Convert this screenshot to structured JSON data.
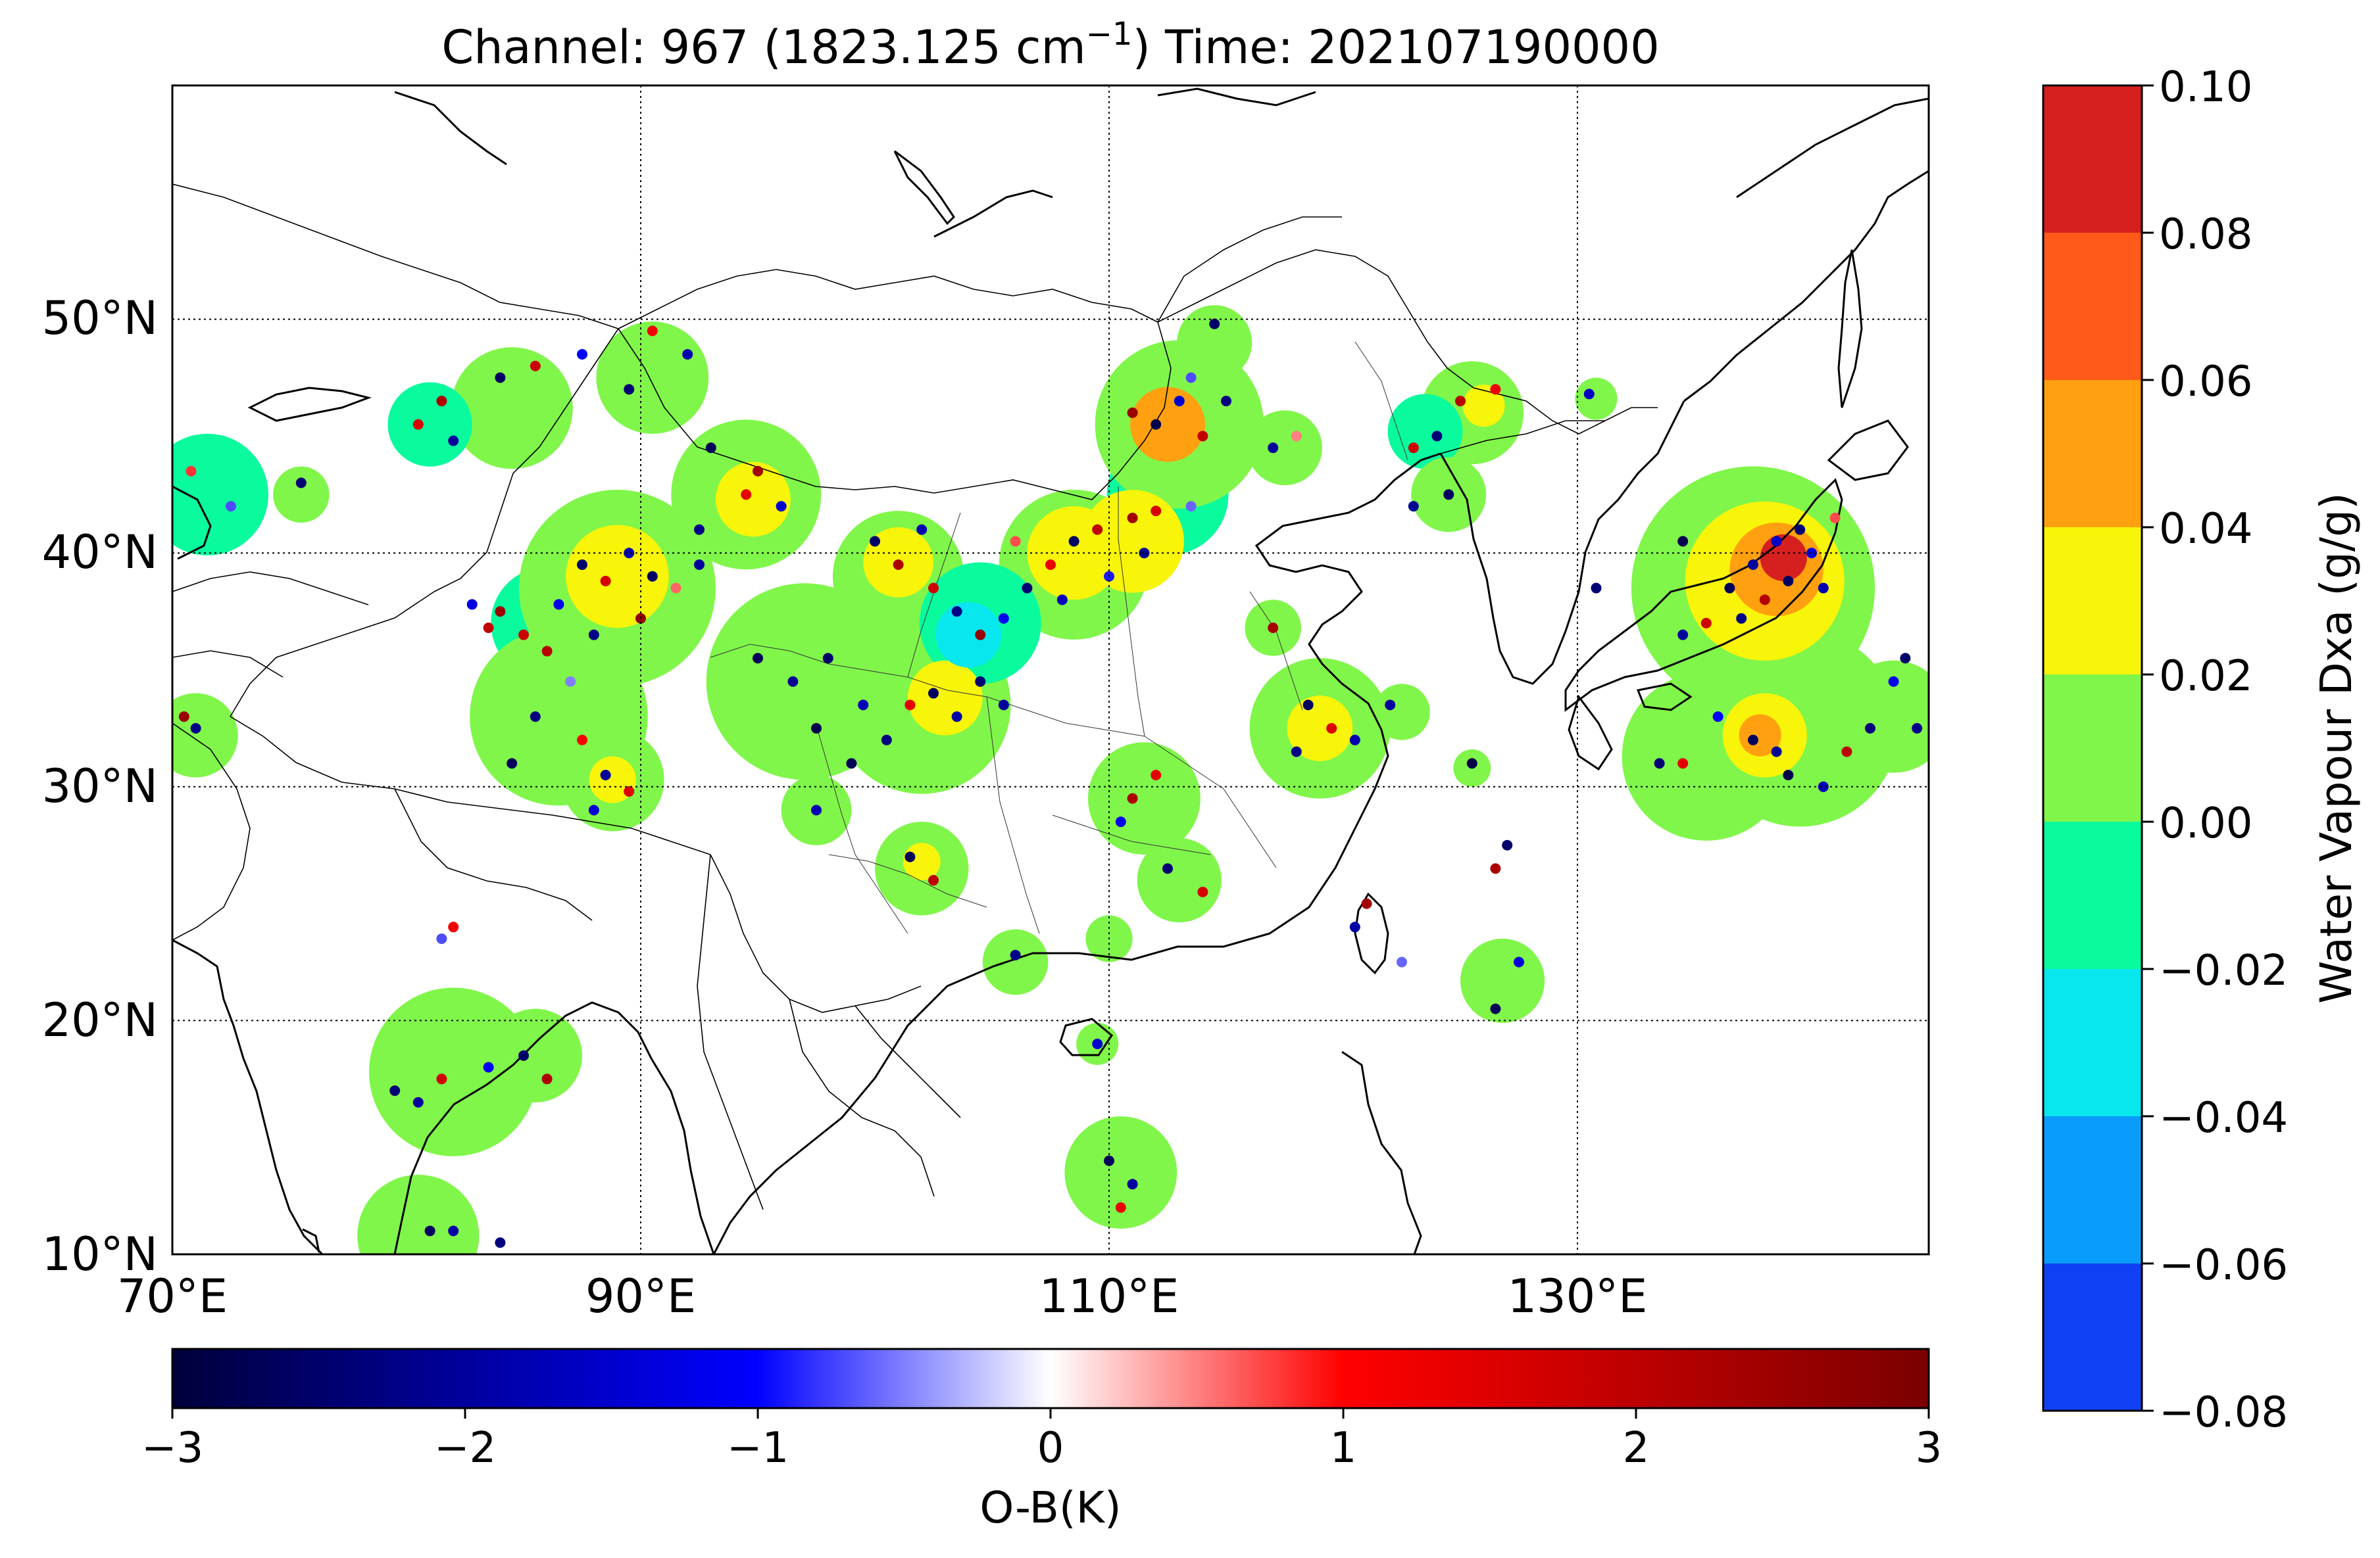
{
  "title": {
    "prefix": "Channel: 967  (1823.125 cm",
    "superscript": "−1",
    "suffix": ")  Time: 202107190000"
  },
  "map": {
    "lon_ticks": [
      "70°E",
      "90°E",
      "110°E",
      "130°E"
    ],
    "lat_ticks": [
      "10°N",
      "20°N",
      "30°N",
      "40°N",
      "50°N"
    ],
    "lon_values": [
      70,
      90,
      110,
      130
    ],
    "lat_values": [
      10,
      20,
      30,
      40,
      50
    ],
    "extent": {
      "lon_min": 70,
      "lon_max": 145,
      "lat_min": 10,
      "lat_max": 60
    },
    "gridlines": "dotted",
    "land_color": "#ffffff",
    "coast_color": "#000000"
  },
  "colorbar_vertical": {
    "label": "Water Vapour Dxa (g/g)",
    "ticks": [
      "0.10",
      "0.08",
      "0.06",
      "0.04",
      "0.02",
      "0.00",
      "−0.02",
      "−0.04",
      "−0.06",
      "−0.08"
    ],
    "colors": [
      "#d62020",
      "#ff5a1a",
      "#ffa010",
      "#f8f40a",
      "#80f64a",
      "#0afa9e",
      "#08e6ee",
      "#0a9cfa",
      "#1040f4"
    ]
  },
  "colorbar_horizontal": {
    "label": "O-B(K)",
    "ticks": [
      "−3",
      "−2",
      "−1",
      "0",
      "1",
      "2",
      "3"
    ],
    "tick_values": [
      -3,
      -2,
      -1,
      0,
      1,
      2,
      3
    ],
    "colors": [
      "#00003a",
      "#0000ff",
      "#ffffff",
      "#ff0000",
      "#7a0000"
    ]
  },
  "dxa_field": [
    {
      "lon": 84.5,
      "lat": 46.2,
      "r": 2.6,
      "v": 0.005
    },
    {
      "lon": 81.0,
      "lat": 45.5,
      "r": 1.8,
      "v": -0.005
    },
    {
      "lon": 90.5,
      "lat": 47.5,
      "r": 2.4,
      "v": 0.005
    },
    {
      "lon": 71.5,
      "lat": 42.5,
      "r": 2.6,
      "v": -0.005
    },
    {
      "lon": 75.5,
      "lat": 42.5,
      "r": 1.2,
      "v": 0.005
    },
    {
      "lon": 94.5,
      "lat": 42.5,
      "r": 3.2,
      "v": 0.012
    },
    {
      "lon": 94.8,
      "lat": 42.3,
      "r": 1.6,
      "v": 0.03
    },
    {
      "lon": 89.0,
      "lat": 38.5,
      "r": 4.2,
      "v": 0.012
    },
    {
      "lon": 89.0,
      "lat": 39.0,
      "r": 2.2,
      "v": 0.03
    },
    {
      "lon": 86.0,
      "lat": 37.0,
      "r": 2.4,
      "v": -0.005
    },
    {
      "lon": 86.5,
      "lat": 33.0,
      "r": 3.8,
      "v": 0.005
    },
    {
      "lon": 88.8,
      "lat": 30.3,
      "r": 2.2,
      "v": 0.012
    },
    {
      "lon": 88.8,
      "lat": 30.3,
      "r": 1.0,
      "v": 0.03
    },
    {
      "lon": 97.0,
      "lat": 34.5,
      "r": 4.2,
      "v": 0.005
    },
    {
      "lon": 102.0,
      "lat": 33.5,
      "r": 3.8,
      "v": 0.005
    },
    {
      "lon": 103.0,
      "lat": 33.8,
      "r": 1.6,
      "v": 0.03
    },
    {
      "lon": 101.0,
      "lat": 39.0,
      "r": 2.8,
      "v": 0.008
    },
    {
      "lon": 101.0,
      "lat": 39.6,
      "r": 1.5,
      "v": 0.03
    },
    {
      "lon": 104.5,
      "lat": 37.0,
      "r": 2.6,
      "v": -0.015
    },
    {
      "lon": 104.0,
      "lat": 36.5,
      "r": 1.4,
      "v": -0.03
    },
    {
      "lon": 108.5,
      "lat": 39.5,
      "r": 3.2,
      "v": 0.008
    },
    {
      "lon": 108.5,
      "lat": 40.0,
      "r": 2.0,
      "v": 0.03
    },
    {
      "lon": 111.0,
      "lat": 40.5,
      "r": 2.2,
      "v": 0.025
    },
    {
      "lon": 112.5,
      "lat": 42.5,
      "r": 2.6,
      "v": -0.01
    },
    {
      "lon": 113.0,
      "lat": 45.5,
      "r": 3.6,
      "v": 0.012
    },
    {
      "lon": 112.5,
      "lat": 45.5,
      "r": 1.6,
      "v": 0.055
    },
    {
      "lon": 114.5,
      "lat": 49.0,
      "r": 1.6,
      "v": 0.005
    },
    {
      "lon": 117.5,
      "lat": 44.5,
      "r": 1.6,
      "v": 0.005
    },
    {
      "lon": 125.5,
      "lat": 46.0,
      "r": 2.2,
      "v": 0.005
    },
    {
      "lon": 123.5,
      "lat": 45.2,
      "r": 1.6,
      "v": -0.005
    },
    {
      "lon": 126.0,
      "lat": 46.3,
      "r": 0.9,
      "v": 0.03
    },
    {
      "lon": 124.5,
      "lat": 42.5,
      "r": 1.6,
      "v": 0.005
    },
    {
      "lon": 130.8,
      "lat": 46.6,
      "r": 0.9,
      "v": 0.005
    },
    {
      "lon": 117.0,
      "lat": 36.8,
      "r": 1.2,
      "v": 0.005
    },
    {
      "lon": 119.0,
      "lat": 32.5,
      "r": 3.0,
      "v": 0.008
    },
    {
      "lon": 119.0,
      "lat": 32.5,
      "r": 1.4,
      "v": 0.03
    },
    {
      "lon": 122.5,
      "lat": 33.2,
      "r": 1.2,
      "v": 0.005
    },
    {
      "lon": 111.5,
      "lat": 29.5,
      "r": 2.4,
      "v": 0.005
    },
    {
      "lon": 113.0,
      "lat": 26.0,
      "r": 1.8,
      "v": 0.005
    },
    {
      "lon": 110.0,
      "lat": 23.5,
      "r": 1.0,
      "v": 0.005
    },
    {
      "lon": 102.0,
      "lat": 26.5,
      "r": 2.0,
      "v": 0.005
    },
    {
      "lon": 102.0,
      "lat": 26.8,
      "r": 0.8,
      "v": 0.03
    },
    {
      "lon": 106.0,
      "lat": 22.5,
      "r": 1.4,
      "v": 0.005
    },
    {
      "lon": 109.5,
      "lat": 19.0,
      "r": 0.9,
      "v": 0.005
    },
    {
      "lon": 110.5,
      "lat": 13.5,
      "r": 2.4,
      "v": 0.005
    },
    {
      "lon": 125.5,
      "lat": 30.8,
      "r": 0.8,
      "v": 0.005
    },
    {
      "lon": 126.8,
      "lat": 21.7,
      "r": 1.8,
      "v": 0.005
    },
    {
      "lon": 97.5,
      "lat": 29.0,
      "r": 1.5,
      "v": 0.005
    },
    {
      "lon": 71.0,
      "lat": 32.2,
      "r": 1.8,
      "v": 0.005
    },
    {
      "lon": 82.0,
      "lat": 17.8,
      "r": 3.6,
      "v": 0.005
    },
    {
      "lon": 85.5,
      "lat": 18.5,
      "r": 2.0,
      "v": 0.005
    },
    {
      "lon": 80.5,
      "lat": 10.8,
      "r": 2.6,
      "v": 0.005
    },
    {
      "lon": 137.5,
      "lat": 38.5,
      "r": 5.2,
      "v": 0.012
    },
    {
      "lon": 138.0,
      "lat": 38.8,
      "r": 3.4,
      "v": 0.03
    },
    {
      "lon": 138.5,
      "lat": 39.3,
      "r": 2.0,
      "v": 0.06
    },
    {
      "lon": 138.8,
      "lat": 39.8,
      "r": 1.0,
      "v": 0.085
    },
    {
      "lon": 135.5,
      "lat": 31.3,
      "r": 3.6,
      "v": 0.008
    },
    {
      "lon": 139.5,
      "lat": 32.5,
      "r": 4.2,
      "v": 0.008
    },
    {
      "lon": 138.0,
      "lat": 32.2,
      "r": 1.8,
      "v": 0.03
    },
    {
      "lon": 137.8,
      "lat": 32.2,
      "r": 0.9,
      "v": 0.055
    },
    {
      "lon": 143.5,
      "lat": 33.0,
      "r": 2.4,
      "v": 0.005
    }
  ],
  "obs_points": [
    {
      "lon": 84.0,
      "lat": 47.5,
      "ob": -2.6
    },
    {
      "lon": 85.5,
      "lat": 48.0,
      "ob": 1.8
    },
    {
      "lon": 87.5,
      "lat": 48.5,
      "ob": -1.0
    },
    {
      "lon": 81.5,
      "lat": 46.5,
      "ob": 2.2
    },
    {
      "lon": 80.5,
      "lat": 45.5,
      "ob": 1.6
    },
    {
      "lon": 82.0,
      "lat": 44.8,
      "ob": -2.0
    },
    {
      "lon": 89.5,
      "lat": 47.0,
      "ob": -2.4
    },
    {
      "lon": 90.5,
      "lat": 49.5,
      "ob": 1.2
    },
    {
      "lon": 92.0,
      "lat": 48.5,
      "ob": -1.8
    },
    {
      "lon": 72.5,
      "lat": 42.0,
      "ob": -0.7
    },
    {
      "lon": 75.5,
      "lat": 43.0,
      "ob": -2.4
    },
    {
      "lon": 70.8,
      "lat": 43.5,
      "ob": 0.8
    },
    {
      "lon": 93.0,
      "lat": 44.5,
      "ob": -2.7
    },
    {
      "lon": 94.5,
      "lat": 42.5,
      "ob": 1.4
    },
    {
      "lon": 96.0,
      "lat": 42.0,
      "ob": -1.5
    },
    {
      "lon": 92.5,
      "lat": 41.0,
      "ob": -2.2
    },
    {
      "lon": 95.0,
      "lat": 43.5,
      "ob": 2.4
    },
    {
      "lon": 84.0,
      "lat": 37.5,
      "ob": 2.5
    },
    {
      "lon": 85.0,
      "lat": 36.5,
      "ob": 1.8
    },
    {
      "lon": 86.5,
      "lat": 37.8,
      "ob": -1.2
    },
    {
      "lon": 87.5,
      "lat": 39.5,
      "ob": -2.5
    },
    {
      "lon": 88.5,
      "lat": 38.8,
      "ob": 1.6
    },
    {
      "lon": 89.5,
      "lat": 40.0,
      "ob": -1.8
    },
    {
      "lon": 90.5,
      "lat": 39.0,
      "ob": -2.6
    },
    {
      "lon": 91.5,
      "lat": 38.5,
      "ob": 0.6
    },
    {
      "lon": 92.5,
      "lat": 39.5,
      "ob": -2.0
    },
    {
      "lon": 86.0,
      "lat": 35.8,
      "ob": 2.1
    },
    {
      "lon": 87.0,
      "lat": 34.5,
      "ob": -0.5
    },
    {
      "lon": 88.0,
      "lat": 36.5,
      "ob": -2.2
    },
    {
      "lon": 83.5,
      "lat": 36.8,
      "ob": 1.9
    },
    {
      "lon": 82.8,
      "lat": 37.8,
      "ob": -1.3
    },
    {
      "lon": 90.0,
      "lat": 37.2,
      "ob": 2.6
    },
    {
      "lon": 85.5,
      "lat": 33.0,
      "ob": -2.3
    },
    {
      "lon": 87.5,
      "lat": 32.0,
      "ob": 1.1
    },
    {
      "lon": 84.5,
      "lat": 31.0,
      "ob": -2.7
    },
    {
      "lon": 88.5,
      "lat": 30.5,
      "ob": -2.0
    },
    {
      "lon": 89.5,
      "lat": 29.8,
      "ob": 1.5
    },
    {
      "lon": 88.0,
      "lat": 29.0,
      "ob": -1.4
    },
    {
      "lon": 95.0,
      "lat": 35.5,
      "ob": -2.7
    },
    {
      "lon": 96.5,
      "lat": 34.5,
      "ob": -2.1
    },
    {
      "lon": 98.0,
      "lat": 35.5,
      "ob": -2.5
    },
    {
      "lon": 99.5,
      "lat": 33.5,
      "ob": -1.7
    },
    {
      "lon": 97.5,
      "lat": 32.5,
      "ob": -2.8
    },
    {
      "lon": 100.5,
      "lat": 32.0,
      "ob": -2.3
    },
    {
      "lon": 101.5,
      "lat": 33.5,
      "ob": 1.4
    },
    {
      "lon": 102.5,
      "lat": 34.0,
      "ob": -2.6
    },
    {
      "lon": 103.5,
      "lat": 33.0,
      "ob": -1.9
    },
    {
      "lon": 104.5,
      "lat": 34.5,
      "ob": -2.4
    },
    {
      "lon": 105.5,
      "lat": 33.5,
      "ob": -2.0
    },
    {
      "lon": 99.0,
      "lat": 31.0,
      "ob": -2.7
    },
    {
      "lon": 101.0,
      "lat": 39.5,
      "ob": 2.2
    },
    {
      "lon": 100.0,
      "lat": 40.5,
      "ob": -2.5
    },
    {
      "lon": 102.0,
      "lat": 41.0,
      "ob": -1.8
    },
    {
      "lon": 102.5,
      "lat": 38.5,
      "ob": 1.7
    },
    {
      "lon": 103.5,
      "lat": 37.5,
      "ob": -2.2
    },
    {
      "lon": 104.5,
      "lat": 36.5,
      "ob": 2.6
    },
    {
      "lon": 105.5,
      "lat": 37.2,
      "ob": -1.1
    },
    {
      "lon": 106.5,
      "lat": 38.5,
      "ob": -2.4
    },
    {
      "lon": 107.5,
      "lat": 39.5,
      "ob": 1.3
    },
    {
      "lon": 108.5,
      "lat": 40.5,
      "ob": -2.6
    },
    {
      "lon": 109.5,
      "lat": 41.0,
      "ob": 2.0
    },
    {
      "lon": 110.0,
      "lat": 39.0,
      "ob": -0.9
    },
    {
      "lon": 111.0,
      "lat": 41.5,
      "ob": 2.4
    },
    {
      "lon": 112.0,
      "lat": 41.8,
      "ob": 1.6
    },
    {
      "lon": 113.5,
      "lat": 42.0,
      "ob": -0.6
    },
    {
      "lon": 108.0,
      "lat": 38.0,
      "ob": -1.7
    },
    {
      "lon": 111.5,
      "lat": 40.0,
      "ob": -2.1
    },
    {
      "lon": 106.0,
      "lat": 40.5,
      "ob": 0.7
    },
    {
      "lon": 112.0,
      "lat": 45.5,
      "ob": -2.8
    },
    {
      "lon": 113.0,
      "lat": 46.5,
      "ob": -1.5
    },
    {
      "lon": 114.0,
      "lat": 45.0,
      "ob": 1.9
    },
    {
      "lon": 113.5,
      "lat": 47.5,
      "ob": -0.7
    },
    {
      "lon": 115.0,
      "lat": 46.5,
      "ob": -2.3
    },
    {
      "lon": 114.5,
      "lat": 49.8,
      "ob": -2.5
    },
    {
      "lon": 117.0,
      "lat": 44.5,
      "ob": -2.0
    },
    {
      "lon": 118.0,
      "lat": 45.0,
      "ob": 0.5
    },
    {
      "lon": 111.0,
      "lat": 46.0,
      "ob": 2.5
    },
    {
      "lon": 125.0,
      "lat": 46.5,
      "ob": 2.1
    },
    {
      "lon": 126.5,
      "lat": 47.0,
      "ob": 1.3
    },
    {
      "lon": 124.0,
      "lat": 45.0,
      "ob": -2.4
    },
    {
      "lon": 123.0,
      "lat": 44.5,
      "ob": 1.7
    },
    {
      "lon": 124.5,
      "lat": 42.5,
      "ob": -2.6
    },
    {
      "lon": 123.0,
      "lat": 42.0,
      "ob": -2.1
    },
    {
      "lon": 130.5,
      "lat": 46.8,
      "ob": -1.6
    },
    {
      "lon": 130.8,
      "lat": 38.5,
      "ob": -2.4
    },
    {
      "lon": 117.0,
      "lat": 36.8,
      "ob": 2.3
    },
    {
      "lon": 118.5,
      "lat": 33.5,
      "ob": -2.6
    },
    {
      "lon": 119.5,
      "lat": 32.5,
      "ob": 1.5
    },
    {
      "lon": 120.5,
      "lat": 32.0,
      "ob": -1.8
    },
    {
      "lon": 118.0,
      "lat": 31.5,
      "ob": -2.2
    },
    {
      "lon": 122.0,
      "lat": 33.5,
      "ob": -2.0
    },
    {
      "lon": 111.0,
      "lat": 29.5,
      "ob": 2.2
    },
    {
      "lon": 112.0,
      "lat": 30.5,
      "ob": 1.4
    },
    {
      "lon": 110.5,
      "lat": 28.5,
      "ob": -1.2
    },
    {
      "lon": 112.5,
      "lat": 26.5,
      "ob": -2.4
    },
    {
      "lon": 114.0,
      "lat": 25.5,
      "ob": 1.6
    },
    {
      "lon": 101.5,
      "lat": 27.0,
      "ob": -2.7
    },
    {
      "lon": 102.5,
      "lat": 26.0,
      "ob": 2.0
    },
    {
      "lon": 106.0,
      "lat": 22.8,
      "ob": -2.2
    },
    {
      "lon": 109.5,
      "lat": 19.0,
      "ob": -1.5
    },
    {
      "lon": 110.0,
      "lat": 14.0,
      "ob": -2.6
    },
    {
      "lon": 111.0,
      "lat": 13.0,
      "ob": -2.0
    },
    {
      "lon": 110.5,
      "lat": 12.0,
      "ob": 1.3
    },
    {
      "lon": 121.0,
      "lat": 25.0,
      "ob": 2.4
    },
    {
      "lon": 120.5,
      "lat": 24.0,
      "ob": -1.9
    },
    {
      "lon": 122.5,
      "lat": 22.5,
      "ob": -0.6
    },
    {
      "lon": 126.5,
      "lat": 26.5,
      "ob": 2.3
    },
    {
      "lon": 127.0,
      "lat": 27.5,
      "ob": -2.5
    },
    {
      "lon": 125.5,
      "lat": 31.0,
      "ob": -2.9
    },
    {
      "lon": 126.5,
      "lat": 20.5,
      "ob": -2.7
    },
    {
      "lon": 127.5,
      "lat": 22.5,
      "ob": -1.4
    },
    {
      "lon": 97.5,
      "lat": 29.0,
      "ob": -1.8
    },
    {
      "lon": 71.0,
      "lat": 32.5,
      "ob": -2.2
    },
    {
      "lon": 70.5,
      "lat": 33.0,
      "ob": 2.5
    },
    {
      "lon": 81.5,
      "lat": 23.5,
      "ob": -0.7
    },
    {
      "lon": 82.0,
      "lat": 24.0,
      "ob": 1.2
    },
    {
      "lon": 79.5,
      "lat": 17.0,
      "ob": -2.4
    },
    {
      "lon": 80.5,
      "lat": 16.5,
      "ob": -2.0
    },
    {
      "lon": 81.5,
      "lat": 17.5,
      "ob": 1.7
    },
    {
      "lon": 85.0,
      "lat": 18.5,
      "ob": -2.5
    },
    {
      "lon": 86.0,
      "lat": 17.5,
      "ob": 2.2
    },
    {
      "lon": 83.5,
      "lat": 18.0,
      "ob": -1.1
    },
    {
      "lon": 81.0,
      "lat": 11.0,
      "ob": -2.6
    },
    {
      "lon": 82.0,
      "lat": 11.0,
      "ob": -1.9
    },
    {
      "lon": 84.0,
      "lat": 10.5,
      "ob": -2.3
    },
    {
      "lon": 136.5,
      "lat": 38.5,
      "ob": -2.7
    },
    {
      "lon": 137.5,
      "lat": 39.5,
      "ob": -2.0
    },
    {
      "lon": 138.5,
      "lat": 40.5,
      "ob": -1.6
    },
    {
      "lon": 139.5,
      "lat": 41.0,
      "ob": -2.4
    },
    {
      "lon": 138.0,
      "lat": 38.0,
      "ob": 2.1
    },
    {
      "lon": 139.0,
      "lat": 38.8,
      "ob": -2.6
    },
    {
      "lon": 140.0,
      "lat": 40.0,
      "ob": -1.3
    },
    {
      "lon": 137.0,
      "lat": 37.2,
      "ob": -2.2
    },
    {
      "lon": 135.5,
      "lat": 37.0,
      "ob": 1.8
    },
    {
      "lon": 134.5,
      "lat": 40.5,
      "ob": -2.8
    },
    {
      "lon": 141.0,
      "lat": 41.5,
      "ob": 0.7
    },
    {
      "lon": 140.5,
      "lat": 38.5,
      "ob": -1.8
    },
    {
      "lon": 134.5,
      "lat": 36.5,
      "ob": -2.0
    },
    {
      "lon": 137.5,
      "lat": 32.0,
      "ob": -2.6
    },
    {
      "lon": 138.5,
      "lat": 31.5,
      "ob": -2.1
    },
    {
      "lon": 139.0,
      "lat": 30.5,
      "ob": -2.8
    },
    {
      "lon": 140.5,
      "lat": 30.0,
      "ob": -1.7
    },
    {
      "lon": 141.5,
      "lat": 31.5,
      "ob": 2.0
    },
    {
      "lon": 142.5,
      "lat": 32.5,
      "ob": -2.3
    },
    {
      "lon": 143.5,
      "lat": 34.5,
      "ob": -1.2
    },
    {
      "lon": 144.0,
      "lat": 35.5,
      "ob": -2.5
    },
    {
      "lon": 133.5,
      "lat": 31.0,
      "ob": -2.4
    },
    {
      "lon": 134.5,
      "lat": 31.0,
      "ob": 1.4
    },
    {
      "lon": 136.0,
      "lat": 33.0,
      "ob": -1.0
    },
    {
      "lon": 144.5,
      "lat": 32.5,
      "ob": -2.2
    }
  ]
}
